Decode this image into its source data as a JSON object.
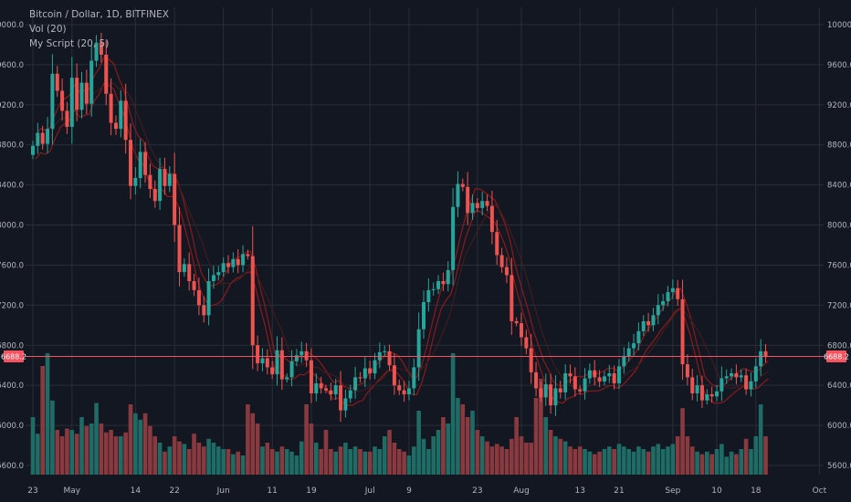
{
  "legend": {
    "title": "Bitcoin / Dollar, 1D, BITFINEX",
    "vol": "Vol (20)",
    "script": "My Script (20, 5)"
  },
  "colors": {
    "background": "#131722",
    "grid": "#2a2e39",
    "up": "#26a69a",
    "down": "#ef5350",
    "volume_up": "#1f6b66",
    "volume_down": "#8a3a3f",
    "band": "#8b1a1a",
    "last_price": "#f7525f",
    "axis_text": "#b2b5be"
  },
  "chart_data": {
    "type": "candlestick",
    "symbol": "Bitcoin / Dollar",
    "timeframe": "1D",
    "exchange": "BITFINEX",
    "price_range": [
      5500,
      10100
    ],
    "y_ticks": [
      "5600.0",
      "6000.0",
      "6400.0",
      "6800.0",
      "7200.0",
      "7600.0",
      "8000.0",
      "8400.0",
      "8800.0",
      "9200.0",
      "9600.0",
      "10000.0"
    ],
    "last_price": "6688.2",
    "x_labels": [
      {
        "label": "23",
        "index": 0
      },
      {
        "label": "May",
        "index": 8
      },
      {
        "label": "14",
        "index": 21
      },
      {
        "label": "22",
        "index": 29
      },
      {
        "label": "Jun",
        "index": 39
      },
      {
        "label": "11",
        "index": 49
      },
      {
        "label": "19",
        "index": 57
      },
      {
        "label": "Jul",
        "index": 69
      },
      {
        "label": "9",
        "index": 77
      },
      {
        "label": "23",
        "index": 91
      },
      {
        "label": "Aug",
        "index": 100
      },
      {
        "label": "13",
        "index": 112
      },
      {
        "label": "21",
        "index": 120
      },
      {
        "label": "Sep",
        "index": 131
      },
      {
        "label": "10",
        "index": 140
      },
      {
        "label": "18",
        "index": 148
      },
      {
        "label": "Oct",
        "index": 161
      }
    ],
    "close": [
      8790,
      8920,
      8810,
      8960,
      9510,
      9340,
      9140,
      8980,
      9470,
      9150,
      9420,
      9210,
      9640,
      9820,
      9700,
      9310,
      9020,
      8960,
      9240,
      8850,
      8390,
      8470,
      8730,
      8500,
      8360,
      8240,
      8560,
      8390,
      8510,
      8000,
      7530,
      7610,
      7440,
      7350,
      7200,
      7100,
      7440,
      7500,
      7530,
      7620,
      7580,
      7660,
      7600,
      7710,
      7690,
      6800,
      6620,
      6670,
      6580,
      6510,
      6750,
      6460,
      6480,
      6640,
      6700,
      6740,
      6650,
      6320,
      6420,
      6370,
      6350,
      6310,
      6400,
      6150,
      6270,
      6350,
      6480,
      6470,
      6570,
      6520,
      6650,
      6730,
      6740,
      6600,
      6400,
      6350,
      6310,
      6370,
      6580,
      6960,
      7230,
      7350,
      7360,
      7440,
      7410,
      7550,
      8180,
      8410,
      8380,
      8120,
      8220,
      8170,
      8240,
      8190,
      7930,
      7700,
      7580,
      7500,
      7040,
      7020,
      6880,
      6770,
      6530,
      6370,
      6280,
      6410,
      6200,
      6370,
      6330,
      6520,
      6490,
      6360,
      6340,
      6470,
      6550,
      6480,
      6440,
      6490,
      6520,
      6420,
      6590,
      6690,
      6770,
      6820,
      6940,
      7040,
      7000,
      7100,
      7200,
      7240,
      7330,
      7370,
      7260,
      6610,
      6480,
      6320,
      6400,
      6250,
      6310,
      6290,
      6340,
      6470,
      6490,
      6520,
      6480,
      6500,
      6360,
      6440,
      6590,
      6740,
      6688
    ],
    "volume": [
      0.45,
      0.32,
      0.85,
      0.95,
      0.58,
      0.35,
      0.3,
      0.36,
      0.35,
      0.32,
      0.45,
      0.38,
      0.4,
      0.56,
      0.4,
      0.33,
      0.35,
      0.3,
      0.3,
      0.33,
      0.55,
      0.48,
      0.43,
      0.48,
      0.38,
      0.3,
      0.25,
      0.18,
      0.22,
      0.3,
      0.26,
      0.24,
      0.2,
      0.32,
      0.25,
      0.22,
      0.28,
      0.25,
      0.22,
      0.2,
      0.2,
      0.16,
      0.18,
      0.15,
      0.55,
      0.48,
      0.4,
      0.22,
      0.25,
      0.2,
      0.18,
      0.22,
      0.2,
      0.18,
      0.15,
      0.26,
      0.55,
      0.4,
      0.25,
      0.2,
      0.35,
      0.2,
      0.18,
      0.22,
      0.25,
      0.2,
      0.22,
      0.2,
      0.18,
      0.18,
      0.22,
      0.2,
      0.3,
      0.35,
      0.25,
      0.2,
      0.18,
      0.15,
      0.22,
      0.5,
      0.28,
      0.2,
      0.3,
      0.35,
      0.45,
      0.4,
      0.95,
      0.6,
      0.55,
      0.45,
      0.5,
      0.35,
      0.3,
      0.26,
      0.22,
      0.24,
      0.22,
      0.2,
      0.28,
      0.45,
      0.3,
      0.25,
      0.25,
      0.6,
      0.75,
      0.45,
      0.35,
      0.3,
      0.28,
      0.26,
      0.22,
      0.2,
      0.22,
      0.2,
      0.18,
      0.16,
      0.18,
      0.2,
      0.22,
      0.2,
      0.24,
      0.22,
      0.2,
      0.18,
      0.22,
      0.2,
      0.18,
      0.22,
      0.24,
      0.2,
      0.22,
      0.24,
      0.3,
      0.52,
      0.3,
      0.22,
      0.18,
      0.16,
      0.18,
      0.16,
      0.2,
      0.24,
      0.14,
      0.18,
      0.16,
      0.2,
      0.28,
      0.2,
      0.3,
      0.55,
      0.3
    ]
  }
}
